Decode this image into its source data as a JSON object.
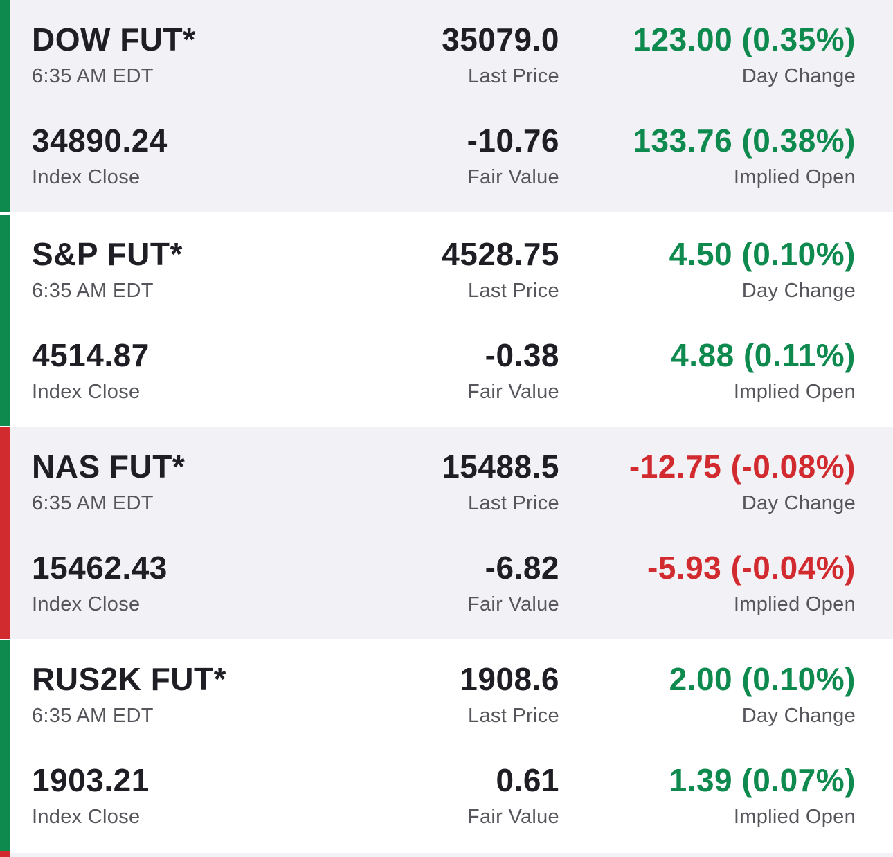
{
  "colors": {
    "up": "#0f8a4f",
    "down": "#d12a2f",
    "alt_background": "#f2f2f6",
    "plain_background": "#ffffff",
    "text_primary": "#1e1e24",
    "text_secondary": "#55555c"
  },
  "labels": {
    "last_price": "Last Price",
    "day_change": "Day Change",
    "index_close": "Index Close",
    "fair_value": "Fair Value",
    "implied_open": "Implied Open"
  },
  "futures": [
    {
      "name": "DOW FUT*",
      "time": "6:35 AM EDT",
      "last_price": "35079.0",
      "day_change": "123.00 (0.35%)",
      "direction": "up",
      "index_close": "34890.24",
      "fair_value": "-10.76",
      "implied_open": "133.76 (0.38%)",
      "implied_direction": "up"
    },
    {
      "name": "S&P FUT*",
      "time": "6:35 AM EDT",
      "last_price": "4528.75",
      "day_change": "4.50 (0.10%)",
      "direction": "up",
      "index_close": "4514.87",
      "fair_value": "-0.38",
      "implied_open": "4.88 (0.11%)",
      "implied_direction": "up"
    },
    {
      "name": "NAS FUT*",
      "time": "6:35 AM EDT",
      "last_price": "15488.5",
      "day_change": "-12.75 (-0.08%)",
      "direction": "down",
      "index_close": "15462.43",
      "fair_value": "-6.82",
      "implied_open": "-5.93 (-0.04%)",
      "implied_direction": "down"
    },
    {
      "name": "RUS2K FUT*",
      "time": "6:35 AM EDT",
      "last_price": "1908.6",
      "day_change": "2.00 (0.10%)",
      "direction": "up",
      "index_close": "1903.21",
      "fair_value": "0.61",
      "implied_open": "1.39 (0.07%)",
      "implied_direction": "up"
    }
  ]
}
